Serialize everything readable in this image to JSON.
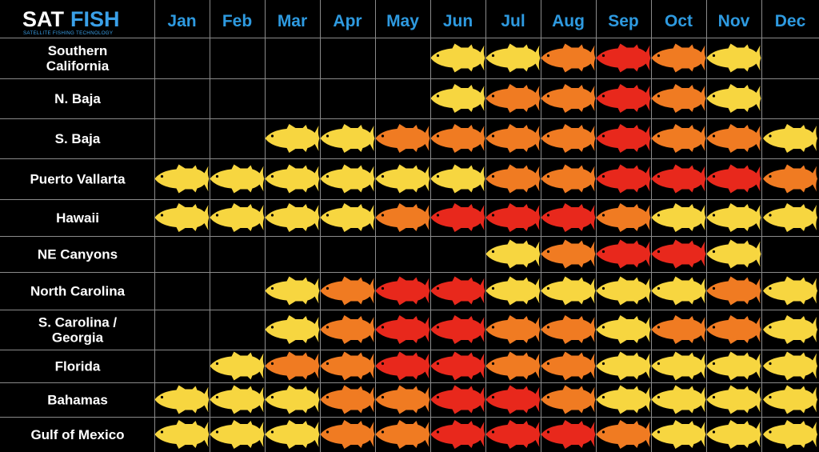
{
  "logo": {
    "part1": "SAT",
    "part2": "FISH",
    "tagline": "SATELLITE FISHING TECHNOLOGY"
  },
  "colors": {
    "background": "#000000",
    "month_text": "#2e9ae0",
    "region_text": "#ffffff",
    "grid": "#8a8a8a",
    "level_1": "#f7d640",
    "level_2": "#f07b22",
    "level_3": "#e8281c"
  },
  "chart_data": {
    "type": "heatmap",
    "marker": "tuna-fish-icon",
    "legend": "none",
    "columns": [
      "Jan",
      "Feb",
      "Mar",
      "Apr",
      "May",
      "Jun",
      "Jul",
      "Aug",
      "Sep",
      "Oct",
      "Nov",
      "Dec"
    ],
    "rows": [
      {
        "label": [
          "Southern",
          "California"
        ],
        "values": [
          0,
          0,
          0,
          0,
          0,
          1,
          1,
          2,
          3,
          2,
          1,
          0
        ]
      },
      {
        "label": [
          "N. Baja"
        ],
        "values": [
          0,
          0,
          0,
          0,
          0,
          1,
          2,
          2,
          3,
          2,
          1,
          0
        ]
      },
      {
        "label": [
          "S. Baja"
        ],
        "values": [
          0,
          0,
          1,
          1,
          2,
          2,
          2,
          2,
          3,
          2,
          2,
          1
        ]
      },
      {
        "label": [
          "Puerto Vallarta"
        ],
        "values": [
          1,
          1,
          1,
          1,
          1,
          1,
          2,
          2,
          3,
          3,
          3,
          2
        ]
      },
      {
        "label": [
          "Hawaii"
        ],
        "values": [
          1,
          1,
          1,
          1,
          2,
          3,
          3,
          3,
          2,
          1,
          1,
          1
        ]
      },
      {
        "label": [
          "NE Canyons"
        ],
        "values": [
          0,
          0,
          0,
          0,
          0,
          0,
          1,
          2,
          3,
          3,
          1,
          0
        ]
      },
      {
        "label": [
          "North Carolina"
        ],
        "values": [
          0,
          0,
          1,
          2,
          3,
          3,
          1,
          1,
          1,
          1,
          2,
          1
        ]
      },
      {
        "label": [
          "S. Carolina /",
          "Georgia"
        ],
        "values": [
          0,
          0,
          1,
          2,
          3,
          3,
          2,
          2,
          1,
          2,
          2,
          1
        ]
      },
      {
        "label": [
          "Florida"
        ],
        "values": [
          0,
          1,
          2,
          2,
          3,
          3,
          2,
          2,
          1,
          1,
          1,
          1
        ]
      },
      {
        "label": [
          "Bahamas"
        ],
        "values": [
          1,
          1,
          1,
          2,
          2,
          3,
          3,
          2,
          1,
          1,
          1,
          1
        ]
      },
      {
        "label": [
          "Gulf of Mexico"
        ],
        "values": [
          1,
          1,
          1,
          2,
          2,
          3,
          3,
          3,
          2,
          1,
          1,
          1
        ]
      }
    ]
  }
}
